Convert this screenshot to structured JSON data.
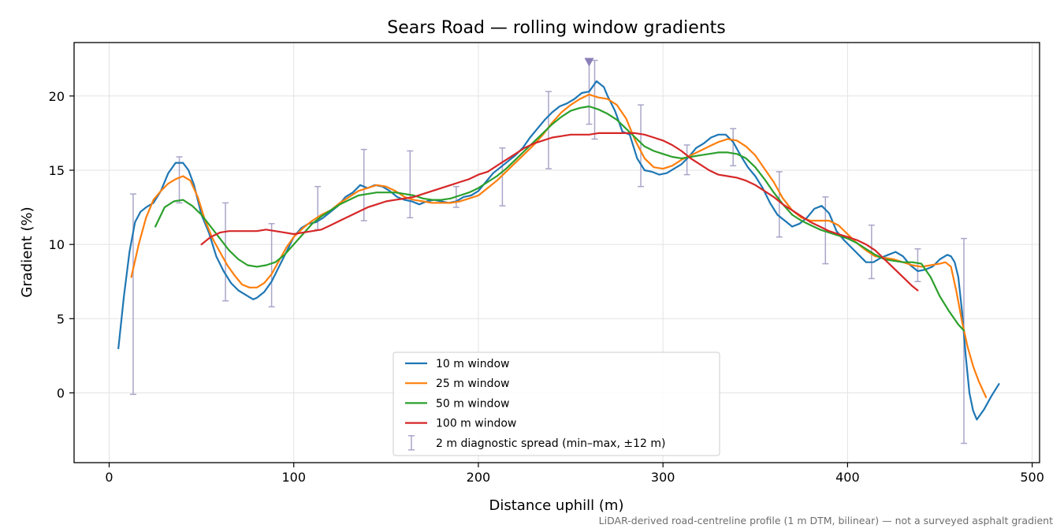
{
  "chart_data": {
    "type": "line",
    "title": "Sears Road — rolling window gradients",
    "xlabel": "Distance uphill (m)",
    "ylabel": "Gradient (%)",
    "xlim": [
      -19,
      504
    ],
    "ylim": [
      -4.7,
      23.6
    ],
    "xticks": [
      0,
      100,
      200,
      300,
      400,
      500
    ],
    "yticks": [
      0,
      5,
      10,
      15,
      20
    ],
    "grid": true,
    "legend_position": "lower-center",
    "footnote": "LiDAR-derived road-centreline profile (1 m DTM, bilinear) — not a surveyed asphalt gradient",
    "series": [
      {
        "name": "10 m window",
        "color": "#1f77b4",
        "x": [
          5,
          8,
          11,
          14,
          17,
          20,
          24,
          28,
          32,
          36,
          40,
          43,
          46,
          50,
          54,
          58,
          62,
          66,
          70,
          74,
          78,
          80,
          84,
          88,
          92,
          96,
          100,
          104,
          108,
          112,
          116,
          120,
          124,
          128,
          132,
          136,
          140,
          144,
          148,
          152,
          156,
          160,
          164,
          168,
          172,
          176,
          180,
          184,
          188,
          192,
          196,
          200,
          204,
          208,
          212,
          216,
          220,
          224,
          228,
          232,
          236,
          240,
          244,
          248,
          252,
          256,
          260,
          264,
          268,
          270,
          274,
          278,
          282,
          286,
          290,
          294,
          298,
          302,
          306,
          310,
          314,
          318,
          322,
          326,
          330,
          334,
          338,
          342,
          346,
          350,
          354,
          358,
          362,
          366,
          370,
          374,
          378,
          382,
          386,
          390,
          394,
          398,
          402,
          406,
          410,
          414,
          418,
          422,
          426,
          430,
          434,
          438,
          442,
          446,
          450,
          454,
          456,
          458,
          460,
          462,
          464,
          466,
          468,
          470,
          474,
          478,
          482
        ],
        "y": [
          3.0,
          6.5,
          9.5,
          11.5,
          12.2,
          12.5,
          12.8,
          13.6,
          14.8,
          15.5,
          15.5,
          15.0,
          14.0,
          12.0,
          10.8,
          9.2,
          8.2,
          7.4,
          6.9,
          6.6,
          6.3,
          6.4,
          6.8,
          7.5,
          8.5,
          9.5,
          10.5,
          11.1,
          11.4,
          11.5,
          11.8,
          12.2,
          12.6,
          13.2,
          13.5,
          14.0,
          13.8,
          14.0,
          13.9,
          13.6,
          13.2,
          13.0,
          12.9,
          12.7,
          12.9,
          13.0,
          12.9,
          12.8,
          12.9,
          13.2,
          13.3,
          13.6,
          14.2,
          14.8,
          15.2,
          15.6,
          16.0,
          16.5,
          17.2,
          17.8,
          18.4,
          18.9,
          19.3,
          19.5,
          19.8,
          20.2,
          20.3,
          21.0,
          20.6,
          20.0,
          19.0,
          17.6,
          17.4,
          15.8,
          15.0,
          14.9,
          14.7,
          14.8,
          15.1,
          15.4,
          15.9,
          16.5,
          16.8,
          17.2,
          17.4,
          17.4,
          16.9,
          16.0,
          15.2,
          14.6,
          13.8,
          12.8,
          12.0,
          11.6,
          11.2,
          11.4,
          11.8,
          12.4,
          12.6,
          12.1,
          10.9,
          10.3,
          9.8,
          9.3,
          8.8,
          8.8,
          9.1,
          9.3,
          9.5,
          9.2,
          8.6,
          8.2,
          8.3,
          8.5,
          9.0,
          9.3,
          9.2,
          8.8,
          7.8,
          5.5,
          2.5,
          0.0,
          -1.2,
          -1.8,
          -1.1,
          -0.2,
          0.6
        ]
      },
      {
        "name": "25 m window",
        "color": "#ff7f0e",
        "x": [
          12,
          16,
          20,
          24,
          28,
          32,
          36,
          40,
          44,
          48,
          52,
          56,
          60,
          64,
          68,
          72,
          76,
          80,
          84,
          88,
          92,
          96,
          100,
          105,
          110,
          115,
          120,
          125,
          130,
          135,
          140,
          145,
          150,
          155,
          160,
          165,
          170,
          175,
          180,
          185,
          190,
          195,
          200,
          205,
          210,
          215,
          220,
          225,
          230,
          235,
          240,
          245,
          250,
          255,
          260,
          265,
          270,
          275,
          280,
          285,
          290,
          295,
          300,
          305,
          310,
          315,
          320,
          325,
          330,
          335,
          340,
          345,
          350,
          355,
          360,
          365,
          370,
          375,
          380,
          385,
          390,
          395,
          400,
          405,
          410,
          415,
          420,
          425,
          430,
          435,
          440,
          445,
          450,
          453,
          456,
          459,
          462,
          465,
          468,
          471,
          475
        ],
        "y": [
          7.8,
          10.0,
          11.8,
          13.0,
          13.6,
          14.1,
          14.4,
          14.6,
          14.3,
          13.2,
          11.6,
          10.4,
          9.5,
          8.6,
          7.9,
          7.3,
          7.1,
          7.1,
          7.4,
          8.0,
          8.9,
          9.8,
          10.5,
          11.1,
          11.6,
          12.0,
          12.3,
          12.8,
          13.2,
          13.6,
          13.8,
          14.0,
          13.9,
          13.6,
          13.2,
          13.0,
          12.9,
          12.8,
          12.8,
          12.8,
          12.9,
          13.1,
          13.3,
          13.8,
          14.3,
          14.9,
          15.5,
          16.1,
          16.7,
          17.4,
          18.2,
          18.9,
          19.4,
          19.8,
          20.1,
          19.9,
          19.8,
          19.4,
          18.5,
          17.0,
          15.8,
          15.2,
          15.1,
          15.3,
          15.7,
          16.0,
          16.3,
          16.6,
          16.9,
          17.1,
          17.0,
          16.6,
          16.0,
          15.1,
          14.2,
          13.1,
          12.3,
          11.8,
          11.6,
          11.6,
          11.6,
          11.3,
          10.7,
          10.1,
          9.6,
          9.2,
          9.1,
          9.0,
          8.8,
          8.6,
          8.5,
          8.6,
          8.7,
          8.8,
          8.5,
          6.8,
          4.8,
          3.1,
          1.8,
          0.8,
          -0.3
        ]
      },
      {
        "name": "50 m window",
        "color": "#2ca02c",
        "x": [
          25,
          30,
          35,
          40,
          45,
          50,
          55,
          60,
          65,
          70,
          75,
          80,
          85,
          90,
          95,
          100,
          105,
          110,
          115,
          120,
          125,
          130,
          135,
          140,
          145,
          150,
          155,
          160,
          165,
          170,
          175,
          180,
          185,
          190,
          195,
          200,
          205,
          210,
          215,
          220,
          225,
          230,
          235,
          240,
          245,
          250,
          255,
          260,
          265,
          270,
          275,
          280,
          285,
          290,
          295,
          300,
          305,
          310,
          315,
          320,
          325,
          330,
          335,
          340,
          345,
          350,
          355,
          360,
          365,
          370,
          375,
          380,
          385,
          390,
          395,
          400,
          405,
          410,
          415,
          420,
          425,
          430,
          435,
          440,
          445,
          450,
          455,
          460,
          463
        ],
        "y": [
          11.2,
          12.5,
          12.9,
          13.0,
          12.6,
          12.0,
          11.2,
          10.4,
          9.6,
          9.0,
          8.6,
          8.5,
          8.6,
          8.8,
          9.3,
          10.0,
          10.7,
          11.4,
          11.9,
          12.3,
          12.7,
          13.0,
          13.3,
          13.4,
          13.5,
          13.5,
          13.5,
          13.4,
          13.3,
          13.1,
          13.0,
          13.0,
          13.1,
          13.3,
          13.5,
          13.8,
          14.2,
          14.6,
          15.1,
          15.7,
          16.3,
          16.9,
          17.5,
          18.1,
          18.6,
          19.0,
          19.2,
          19.3,
          19.1,
          18.8,
          18.4,
          17.8,
          17.2,
          16.6,
          16.3,
          16.1,
          15.9,
          15.8,
          15.9,
          16.0,
          16.1,
          16.2,
          16.2,
          16.1,
          15.8,
          15.2,
          14.4,
          13.5,
          12.7,
          12.0,
          11.6,
          11.3,
          11.0,
          10.8,
          10.6,
          10.4,
          10.1,
          9.7,
          9.3,
          9.0,
          8.9,
          8.8,
          8.8,
          8.7,
          7.8,
          6.5,
          5.5,
          4.6,
          4.2
        ]
      },
      {
        "name": "100 m window",
        "color": "#d62728",
        "x": [
          50,
          55,
          60,
          65,
          70,
          75,
          80,
          85,
          90,
          95,
          100,
          105,
          110,
          115,
          120,
          125,
          130,
          135,
          140,
          145,
          150,
          155,
          160,
          165,
          170,
          175,
          180,
          185,
          190,
          195,
          200,
          205,
          210,
          215,
          220,
          225,
          230,
          235,
          240,
          245,
          250,
          255,
          260,
          265,
          270,
          275,
          280,
          285,
          290,
          295,
          300,
          305,
          310,
          315,
          320,
          325,
          330,
          335,
          340,
          345,
          350,
          355,
          360,
          365,
          370,
          375,
          380,
          385,
          390,
          395,
          400,
          405,
          410,
          415,
          420,
          425,
          430,
          435,
          438
        ],
        "y": [
          10.0,
          10.5,
          10.8,
          10.9,
          10.9,
          10.9,
          10.9,
          11.0,
          10.9,
          10.8,
          10.7,
          10.8,
          10.9,
          11.0,
          11.3,
          11.6,
          11.9,
          12.2,
          12.5,
          12.7,
          12.9,
          13.0,
          13.1,
          13.2,
          13.4,
          13.6,
          13.8,
          14.0,
          14.2,
          14.4,
          14.7,
          14.9,
          15.3,
          15.7,
          16.1,
          16.5,
          16.8,
          17.0,
          17.2,
          17.3,
          17.4,
          17.4,
          17.4,
          17.5,
          17.5,
          17.5,
          17.5,
          17.5,
          17.4,
          17.2,
          17.0,
          16.7,
          16.3,
          15.8,
          15.4,
          15.0,
          14.7,
          14.6,
          14.5,
          14.3,
          14.0,
          13.6,
          13.2,
          12.7,
          12.3,
          11.9,
          11.5,
          11.2,
          10.9,
          10.7,
          10.5,
          10.3,
          10.0,
          9.6,
          9.0,
          8.4,
          7.8,
          7.2,
          6.9
        ]
      }
    ],
    "errorbars": {
      "name": "2 m diagnostic spread (min–max, ±12 m)",
      "color": "#a9a6c9",
      "points": [
        {
          "x": 13,
          "low": -0.1,
          "high": 13.4
        },
        {
          "x": 38,
          "low": 12.8,
          "high": 15.9
        },
        {
          "x": 63,
          "low": 6.2,
          "high": 12.8
        },
        {
          "x": 88,
          "low": 5.8,
          "high": 11.4
        },
        {
          "x": 113,
          "low": 11.0,
          "high": 13.9
        },
        {
          "x": 138,
          "low": 11.6,
          "high": 16.4
        },
        {
          "x": 163,
          "low": 11.8,
          "high": 16.3
        },
        {
          "x": 188,
          "low": 12.5,
          "high": 13.9
        },
        {
          "x": 213,
          "low": 12.6,
          "high": 16.5
        },
        {
          "x": 238,
          "low": 15.1,
          "high": 20.3
        },
        {
          "x": 260,
          "low": 18.1,
          "high": 22.4
        },
        {
          "x": 263,
          "low": 17.1,
          "high": 22.4
        },
        {
          "x": 288,
          "low": 13.9,
          "high": 19.4
        },
        {
          "x": 313,
          "low": 14.7,
          "high": 16.7
        },
        {
          "x": 338,
          "low": 15.3,
          "high": 17.8
        },
        {
          "x": 363,
          "low": 10.5,
          "high": 14.9
        },
        {
          "x": 388,
          "low": 8.7,
          "high": 13.2
        },
        {
          "x": 413,
          "low": 7.7,
          "high": 11.3
        },
        {
          "x": 438,
          "low": 7.5,
          "high": 9.7
        },
        {
          "x": 463,
          "low": -3.4,
          "high": 10.4
        }
      ]
    },
    "marker": {
      "symbol": "down-triangle",
      "x": 260,
      "y": 22.3,
      "color": "#8a7fb7"
    }
  }
}
